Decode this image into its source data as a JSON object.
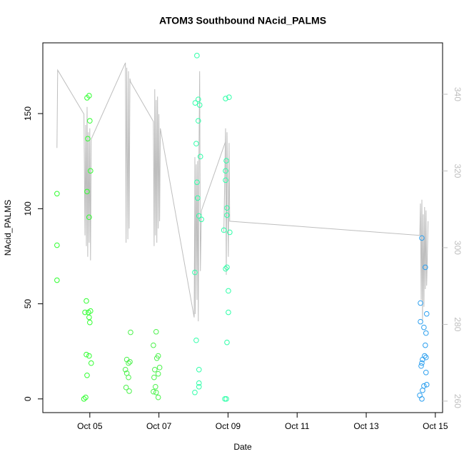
{
  "chart_data": {
    "type": "scatter",
    "title": "ATOM3 Southbound NAcid_PALMS",
    "x_label": "Date",
    "y_label": "NAcid_PALMS",
    "xlim": [
      3.64,
      15.21
    ],
    "ylim": [
      -7.2,
      187.2
    ],
    "y2lim": [
      257.0,
      353.4
    ],
    "xticks": [
      {
        "value": 5,
        "label": "Oct 05"
      },
      {
        "value": 7,
        "label": "Oct 07"
      },
      {
        "value": 9,
        "label": "Oct 09"
      },
      {
        "value": 11,
        "label": "Oct 11"
      },
      {
        "value": 13,
        "label": "Oct 13"
      },
      {
        "value": 15,
        "label": "Oct 15"
      }
    ],
    "yticks": [
      0,
      50,
      100,
      150
    ],
    "y2ticks": [
      260,
      280,
      300,
      320,
      340
    ],
    "y2_color": "#bebebe",
    "series": [
      {
        "color": "#bebebe",
        "axis": "y2",
        "style": "line",
        "x": [
          4.05,
          4.07,
          4.83,
          4.86,
          4.88,
          4.9,
          4.92,
          4.94,
          4.96,
          4.98,
          5.0,
          5.02,
          5.04,
          6.03,
          6.05,
          6.07,
          6.1,
          6.12,
          6.14,
          6.16,
          6.18,
          6.84,
          6.86,
          6.88,
          6.9,
          6.92,
          6.94,
          6.96,
          6.98,
          7.0,
          7.02,
          7.04,
          8.02,
          8.04,
          8.05,
          8.08,
          8.1,
          8.12,
          8.14,
          8.16,
          8.18,
          8.2,
          8.23,
          8.93,
          8.88,
          8.93,
          8.95,
          8.97,
          9.01,
          9.03,
          9.05,
          14.55,
          14.57,
          14.59,
          14.61,
          14.63,
          14.65,
          14.67,
          14.69,
          14.71,
          14.73,
          14.75,
          14.79
        ],
        "values": [
          326.0,
          346.3,
          334.8,
          303.2,
          332.0,
          300.4,
          336.7,
          297.6,
          330.1,
          301.3,
          331.1,
          296.7,
          328.3,
          348.2,
          301.3,
          346.9,
          302.2,
          346.0,
          305.0,
          344.1,
          343.2,
          332.9,
          300.4,
          341.3,
          303.2,
          338.5,
          301.3,
          339.4,
          305.0,
          334.8,
          306.9,
          331.1,
          281.8,
          323.6,
          282.7,
          321.7,
          286.4,
          322.6,
          280.8,
          325.5,
          346.0,
          293.9,
          309.7,
          327.7,
          304.1,
          331.1,
          292.9,
          330.1,
          297.6,
          327.3,
          306.9,
          303.2,
          311.5,
          286.4,
          312.5,
          280.8,
          308.7,
          284.6,
          310.6,
          289.2,
          309.7,
          290.1,
          306.9
        ]
      },
      {
        "color": "#2eff2e",
        "style": "points",
        "x": [
          4.05,
          4.05,
          4.05,
          4.83,
          4.88,
          4.86,
          4.9,
          4.92,
          4.94,
          4.92,
          4.98,
          5.0,
          5.02,
          4.98,
          4.96,
          4.98,
          5.0,
          5.02,
          4.9,
          4.98,
          5.04,
          4.92
        ],
        "values": [
          107.9,
          80.8,
          62.4,
          0,
          0.8,
          45.5,
          51.5,
          109,
          136.8,
          158.3,
          159.4,
          146.2,
          119.9,
          95.5,
          45.5,
          42.9,
          40.2,
          46.2,
          23.3,
          22.6,
          18.8,
          12.4
        ]
      },
      {
        "color": "#4cf24c",
        "style": "points",
        "x": [
          6.07,
          6.12,
          6.03,
          6.07,
          6.12,
          6.05,
          6.14,
          6.18,
          6.16,
          6.84,
          6.92,
          6.94,
          6.98,
          6.88,
          7.02,
          6.98,
          6.86,
          6.9,
          6.84,
          6.92,
          6.98
        ],
        "values": [
          20.7,
          18.8,
          15.4,
          13.5,
          11.3,
          6.0,
          4.1,
          35,
          19.5,
          28.2,
          35.3,
          21.4,
          22.6,
          15.4,
          16.5,
          13.2,
          11.3,
          6.4,
          3.8,
          3.4,
          0.8
        ]
      },
      {
        "color": "#2effa8",
        "style": "points",
        "x": [
          8.1,
          8.05,
          8.14,
          8.18,
          8.14,
          8.08,
          8.2,
          8.1,
          8.12,
          8.16,
          8.23,
          8.04,
          8.08,
          8.16,
          8.16,
          8.16,
          8.04,
          8.93,
          9.03,
          8.93,
          8.95,
          8.93,
          8.97,
          8.97,
          8.88,
          9.05,
          8.97,
          8.93,
          9.01,
          9.01,
          8.97,
          8.91,
          8.95
        ],
        "values": [
          180.5,
          155.6,
          157.5,
          154.5,
          146.2,
          134.2,
          127.4,
          113.9,
          105.6,
          96.2,
          94.4,
          66.5,
          30.8,
          15.4,
          8.3,
          6.4,
          3.4,
          157.9,
          158.6,
          119.9,
          125.2,
          115.0,
          100.4,
          96.6,
          88.7,
          87.6,
          69.2,
          68.4,
          56.8,
          45.5,
          29.7,
          0,
          0
        ]
      },
      {
        "color": "#2b9fef",
        "style": "points",
        "x": [
          14.61,
          14.71,
          14.57,
          14.57,
          14.67,
          14.75,
          14.73,
          14.71,
          14.69,
          14.73,
          14.63,
          14.61,
          14.59,
          14.73,
          14.67,
          14.75,
          14.63,
          14.55,
          14.61
        ],
        "values": [
          84.6,
          69.2,
          50.4,
          40.6,
          37.6,
          44.7,
          34.6,
          28.2,
          22.6,
          21.8,
          20.7,
          18.8,
          17.3,
          13.9,
          6.8,
          7.5,
          4.5,
          1.9,
          0
        ]
      }
    ]
  }
}
